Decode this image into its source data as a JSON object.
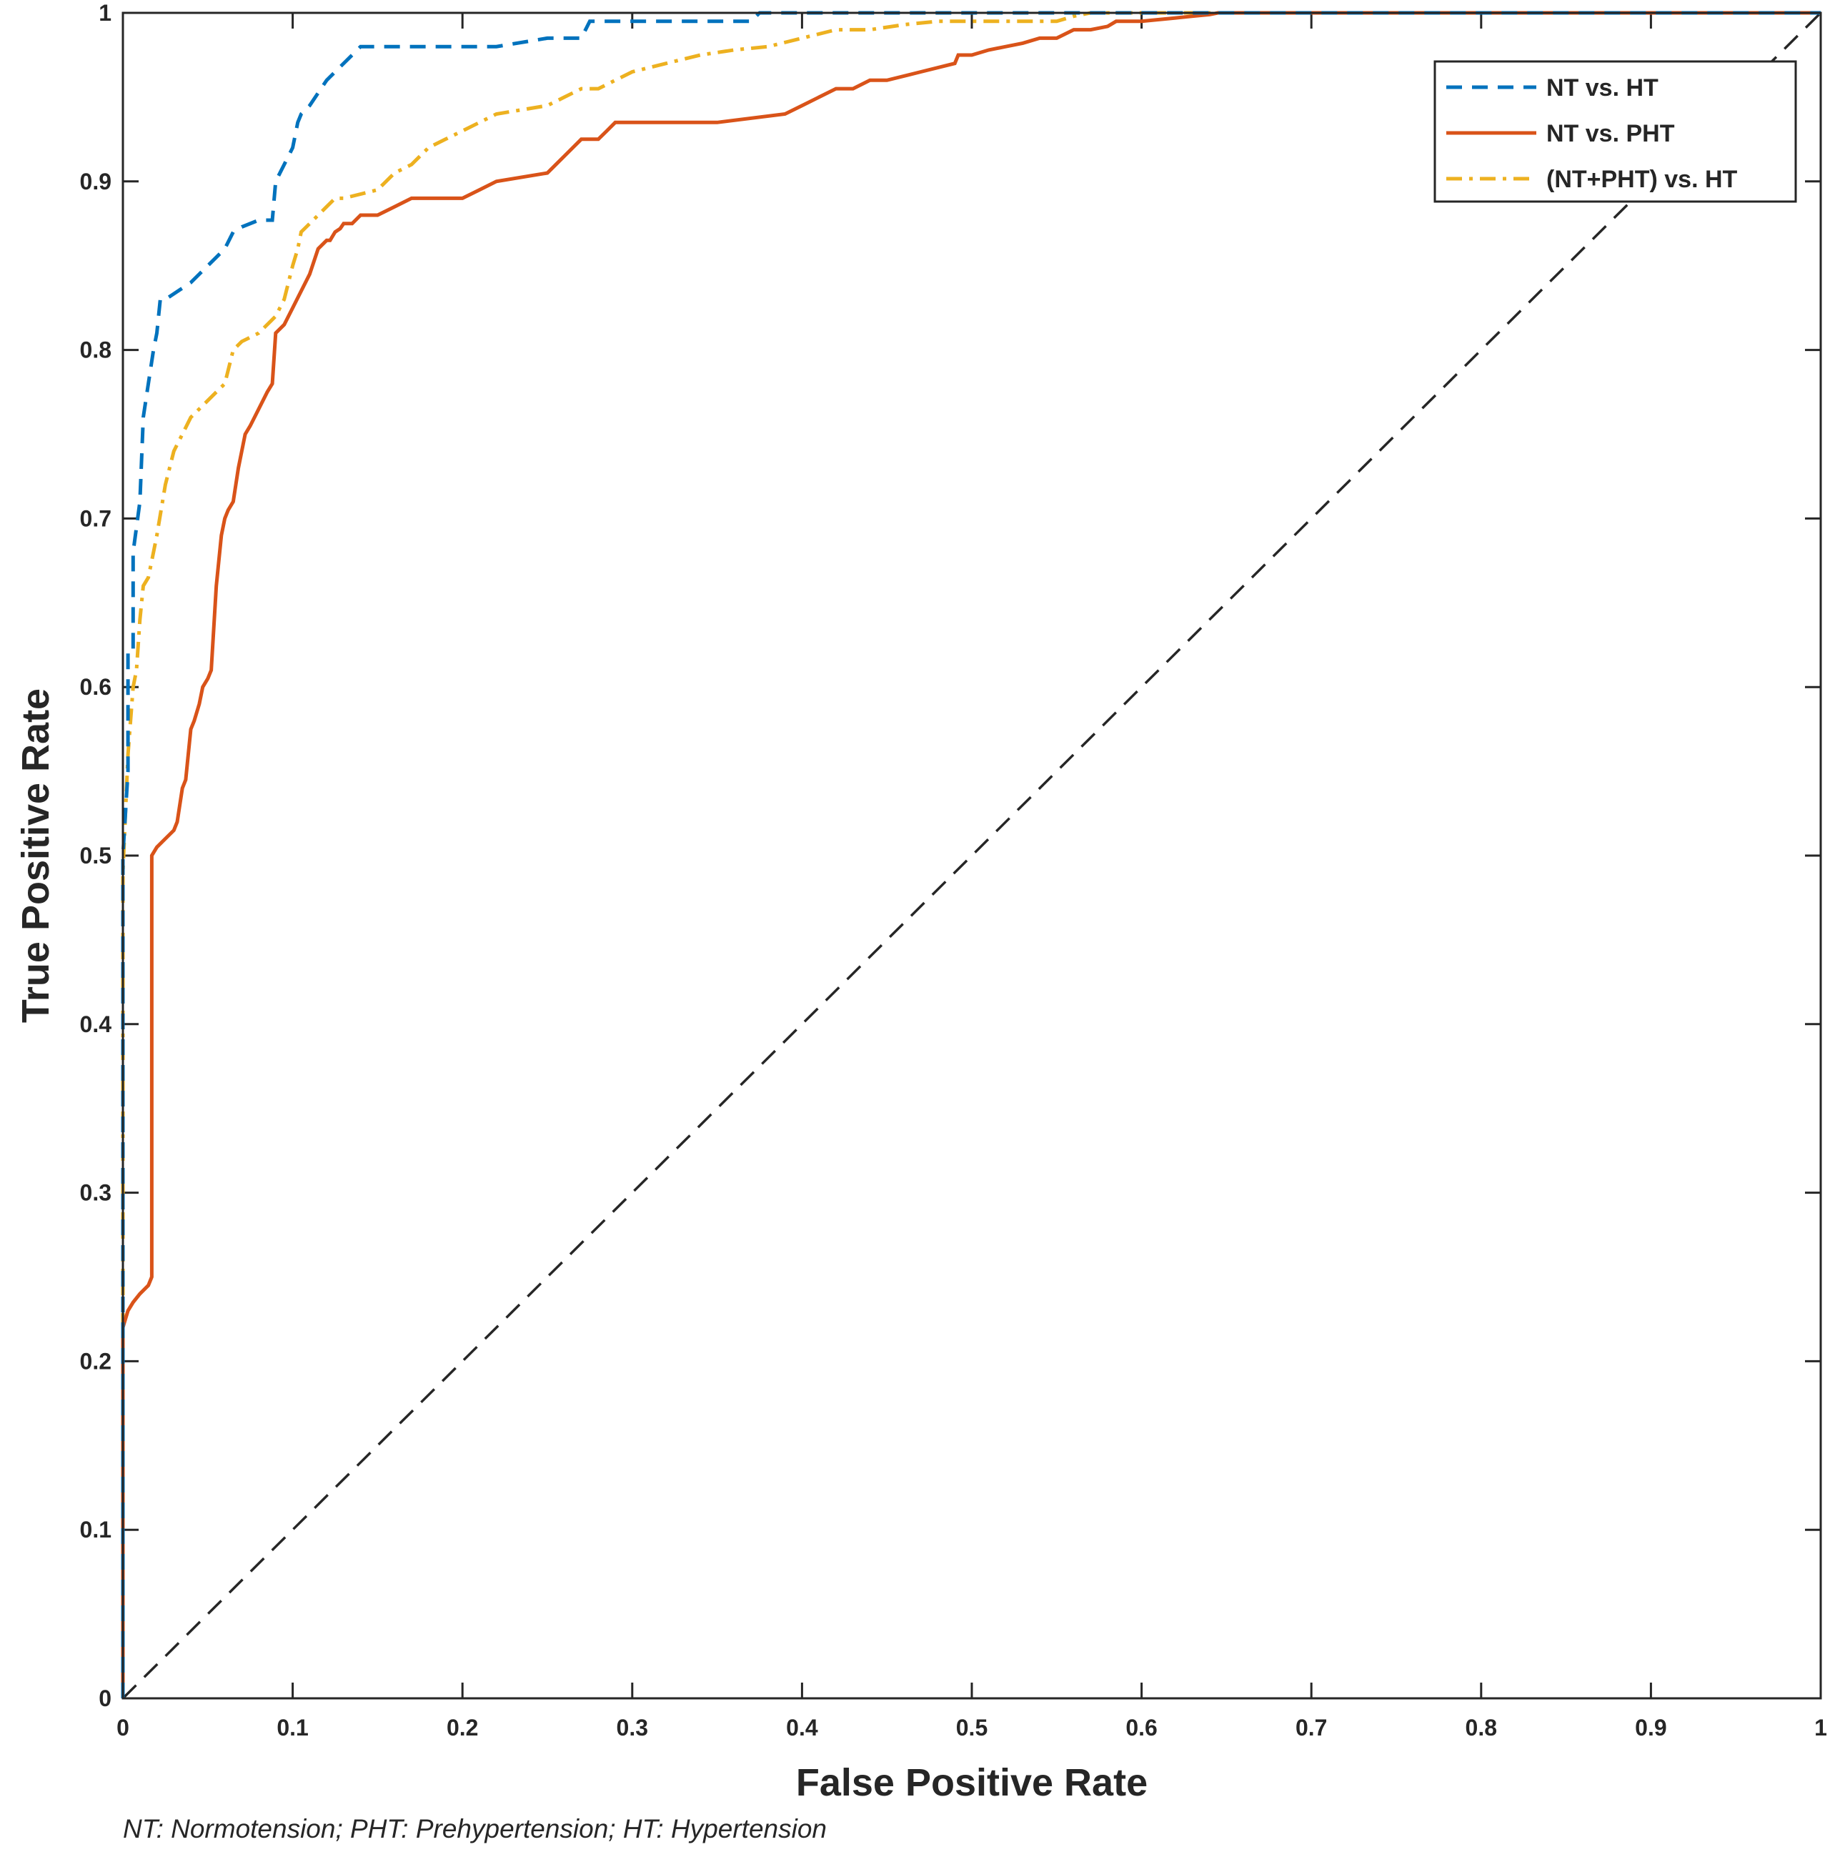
{
  "chart_data": {
    "type": "line",
    "title": "",
    "xlabel": "False Positive Rate",
    "ylabel": "True Positive Rate",
    "xlim": [
      0,
      1
    ],
    "ylim": [
      0,
      1
    ],
    "xticks": [
      "0",
      "0.1",
      "0.2",
      "0.3",
      "0.4",
      "0.5",
      "0.6",
      "0.7",
      "0.8",
      "0.9",
      "1"
    ],
    "yticks": [
      "0",
      "0.1",
      "0.2",
      "0.3",
      "0.4",
      "0.5",
      "0.6",
      "0.7",
      "0.8",
      "0.9",
      "1"
    ],
    "legend_position": "top-right",
    "series": [
      {
        "name": "NT  vs. HT",
        "color": "#0072BD",
        "style": "dashed",
        "x": [
          0,
          0,
          0.003,
          0.003,
          0.006,
          0.006,
          0.01,
          0.012,
          0.015,
          0.018,
          0.02,
          0.022,
          0.025,
          0.04,
          0.045,
          0.05,
          0.06,
          0.065,
          0.07,
          0.08,
          0.088,
          0.09,
          0.095,
          0.1,
          0.103,
          0.105,
          0.11,
          0.12,
          0.125,
          0.135,
          0.14,
          0.2,
          0.22,
          0.25,
          0.27,
          0.275,
          0.3,
          0.35,
          0.37,
          0.375,
          0.6,
          1.0
        ],
        "y": [
          0,
          0.5,
          0.55,
          0.62,
          0.62,
          0.68,
          0.71,
          0.76,
          0.78,
          0.8,
          0.81,
          0.83,
          0.83,
          0.84,
          0.845,
          0.85,
          0.86,
          0.87,
          0.873,
          0.877,
          0.877,
          0.9,
          0.91,
          0.92,
          0.935,
          0.94,
          0.945,
          0.96,
          0.965,
          0.975,
          0.98,
          0.98,
          0.98,
          0.985,
          0.985,
          0.995,
          0.995,
          0.995,
          0.995,
          1.0,
          1.0,
          1.0
        ]
      },
      {
        "name": "NT vs. PHT",
        "color": "#D95319",
        "style": "solid",
        "x": [
          0,
          0,
          0.003,
          0.006,
          0.01,
          0.015,
          0.017,
          0.017,
          0.02,
          0.025,
          0.03,
          0.032,
          0.035,
          0.037,
          0.04,
          0.042,
          0.045,
          0.047,
          0.05,
          0.052,
          0.055,
          0.058,
          0.06,
          0.062,
          0.065,
          0.068,
          0.072,
          0.075,
          0.08,
          0.085,
          0.088,
          0.09,
          0.095,
          0.1,
          0.105,
          0.11,
          0.115,
          0.12,
          0.122,
          0.125,
          0.128,
          0.13,
          0.135,
          0.14,
          0.145,
          0.15,
          0.16,
          0.17,
          0.18,
          0.2,
          0.21,
          0.22,
          0.25,
          0.255,
          0.26,
          0.265,
          0.27,
          0.275,
          0.28,
          0.285,
          0.29,
          0.34,
          0.35,
          0.39,
          0.4,
          0.41,
          0.42,
          0.43,
          0.44,
          0.45,
          0.47,
          0.49,
          0.492,
          0.5,
          0.51,
          0.52,
          0.53,
          0.54,
          0.55,
          0.56,
          0.57,
          0.58,
          0.585,
          0.6,
          0.62,
          0.63,
          0.64,
          0.645,
          0.65,
          0.66,
          1.0
        ],
        "y": [
          0,
          0.22,
          0.23,
          0.235,
          0.24,
          0.245,
          0.25,
          0.5,
          0.505,
          0.51,
          0.515,
          0.52,
          0.54,
          0.545,
          0.575,
          0.58,
          0.59,
          0.6,
          0.605,
          0.61,
          0.66,
          0.69,
          0.7,
          0.705,
          0.71,
          0.73,
          0.75,
          0.755,
          0.765,
          0.775,
          0.78,
          0.81,
          0.815,
          0.825,
          0.835,
          0.845,
          0.86,
          0.865,
          0.865,
          0.87,
          0.872,
          0.875,
          0.875,
          0.88,
          0.88,
          0.88,
          0.885,
          0.89,
          0.89,
          0.89,
          0.895,
          0.9,
          0.905,
          0.91,
          0.915,
          0.92,
          0.925,
          0.925,
          0.925,
          0.93,
          0.935,
          0.935,
          0.935,
          0.94,
          0.945,
          0.95,
          0.955,
          0.955,
          0.96,
          0.96,
          0.965,
          0.97,
          0.975,
          0.975,
          0.978,
          0.98,
          0.982,
          0.985,
          0.985,
          0.99,
          0.99,
          0.992,
          0.995,
          0.995,
          0.997,
          0.998,
          0.999,
          1.0,
          1.0,
          1.0,
          1.0
        ]
      },
      {
        "name": "(NT+PHT) vs. HT",
        "color": "#EDB120",
        "style": "dash-dot",
        "x": [
          0,
          0,
          0.003,
          0.006,
          0.008,
          0.01,
          0.012,
          0.015,
          0.018,
          0.02,
          0.025,
          0.03,
          0.035,
          0.04,
          0.045,
          0.05,
          0.06,
          0.065,
          0.07,
          0.08,
          0.09,
          0.095,
          0.1,
          0.103,
          0.105,
          0.11,
          0.12,
          0.125,
          0.13,
          0.15,
          0.16,
          0.17,
          0.18,
          0.19,
          0.2,
          0.21,
          0.22,
          0.25,
          0.26,
          0.27,
          0.28,
          0.29,
          0.3,
          0.32,
          0.34,
          0.36,
          0.38,
          0.4,
          0.42,
          0.43,
          0.44,
          0.46,
          0.48,
          0.5,
          0.55,
          0.56,
          0.57,
          0.58,
          0.6,
          1.0
        ],
        "y": [
          0,
          0.49,
          0.56,
          0.6,
          0.61,
          0.64,
          0.66,
          0.665,
          0.68,
          0.69,
          0.72,
          0.74,
          0.75,
          0.76,
          0.765,
          0.77,
          0.78,
          0.8,
          0.805,
          0.81,
          0.82,
          0.83,
          0.85,
          0.86,
          0.87,
          0.875,
          0.885,
          0.89,
          0.89,
          0.895,
          0.905,
          0.91,
          0.92,
          0.925,
          0.93,
          0.935,
          0.94,
          0.945,
          0.95,
          0.955,
          0.955,
          0.96,
          0.965,
          0.97,
          0.975,
          0.978,
          0.98,
          0.985,
          0.99,
          0.99,
          0.99,
          0.993,
          0.995,
          0.995,
          0.995,
          0.998,
          1.0,
          1.0,
          1.0,
          1.0
        ]
      },
      {
        "name": "Chance",
        "color": "#262626",
        "style": "dashed",
        "x": [
          0,
          1
        ],
        "y": [
          0,
          1
        ]
      }
    ],
    "legend_series": [
      0,
      1,
      2
    ]
  },
  "footnote": "NT: Normotension; PHT: Prehypertension; HT: Hypertension"
}
